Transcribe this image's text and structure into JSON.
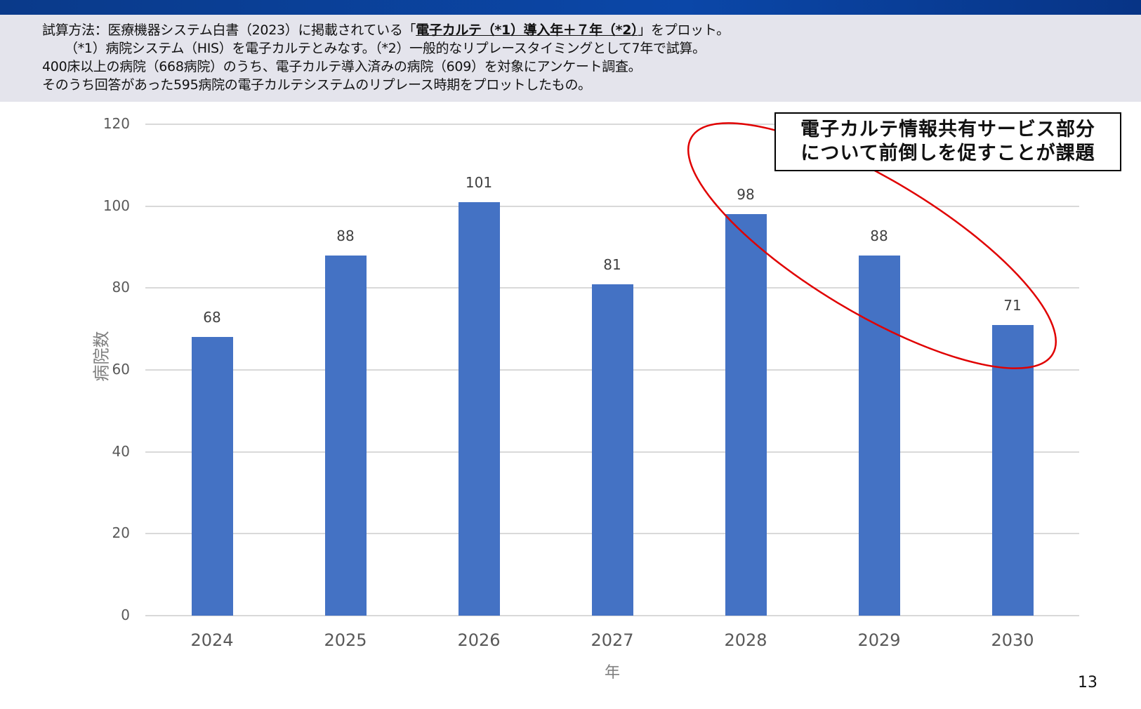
{
  "header": {
    "lines": [
      {
        "prefix": "試算方法：医療機器システム白書（2023）に掲載されている「",
        "bold": "電子カルテ（*1）導入年＋７年（*2）",
        "suffix": "」をプロット。"
      },
      {
        "text": "（*1）病院システム（HIS）を電子カルテとみなす。（*2）一般的なリプレースタイミングとして7年で試算。"
      },
      {
        "text": "400床以上の病院（668病院）のうち、電子カルテ導入済みの病院（609）を対象にアンケート調査。"
      },
      {
        "text": "そのうち回答があった595病院の電子カルテシステムのリプレース時期をプロットしたもの。"
      }
    ]
  },
  "callout": {
    "line1": "電子カルテ情報共有サービス部分",
    "line2": "について前倒しを促すことが課題",
    "highlight_color": "#e00000"
  },
  "page_number": "13",
  "colors": {
    "bar": "#4472c4",
    "grid": "#d9d9d9",
    "band": "#0b47a8",
    "panel": "#e4e4ec"
  },
  "chart_data": {
    "type": "bar",
    "title": "",
    "categories": [
      "2024",
      "2025",
      "2026",
      "2027",
      "2028",
      "2029",
      "2030"
    ],
    "values": [
      68,
      88,
      101,
      81,
      98,
      88,
      71
    ],
    "xlabel": "年",
    "ylabel": "病院数",
    "ylim": [
      0,
      120
    ],
    "yticks": [
      "0",
      "20",
      "40",
      "60",
      "80",
      "100",
      "120"
    ],
    "grid": true,
    "legend": null,
    "data_labels": true,
    "annotation": "Red ellipse highlighting 2028–2030 with callout: 電子カルテ情報共有サービス部分について前倒しを促すことが課題"
  }
}
